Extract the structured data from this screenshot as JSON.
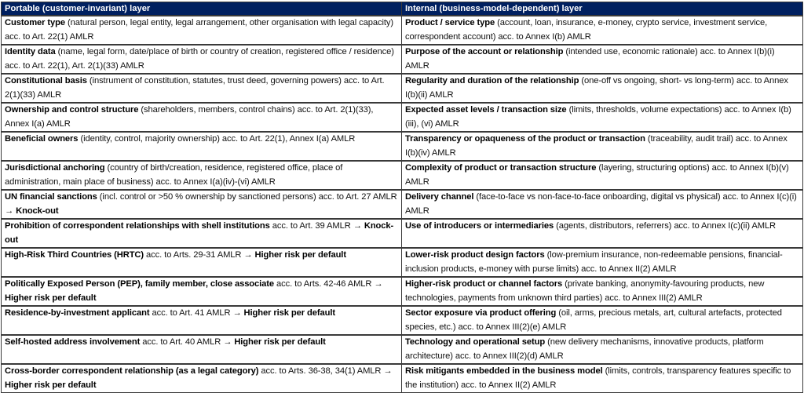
{
  "headers": [
    "Portable (customer-invariant) layer",
    "Internal (business-model-dependent) layer"
  ],
  "rows": [
    [
      [
        {
          "b": true,
          "t": "Customer type"
        },
        {
          "b": false,
          "t": " (natural person, legal entity, legal arrangement, other organisation with legal capacity) acc. to Art. 22(1) AMLR"
        }
      ],
      [
        {
          "b": true,
          "t": "Product / service type"
        },
        {
          "b": false,
          "t": " (account, loan, insurance, e-money, crypto service, investment service, correspondent account) acc. to Annex I(b) AMLR"
        }
      ]
    ],
    [
      [
        {
          "b": true,
          "t": "Identity data"
        },
        {
          "b": false,
          "t": " (name, legal form, date/place of birth or country of creation, registered office / residence) acc. to Art. 22(1), Art. 2(1)(33) AMLR"
        }
      ],
      [
        {
          "b": true,
          "t": "Purpose of the account or relationship"
        },
        {
          "b": false,
          "t": " (intended use, economic rationale) acc. to Annex I(b)(i) AMLR"
        }
      ]
    ],
    [
      [
        {
          "b": true,
          "t": "Constitutional basis"
        },
        {
          "b": false,
          "t": " (instrument of constitution, statutes, trust deed, governing powers) acc. to Art. 2(1)(33) AMLR"
        }
      ],
      [
        {
          "b": true,
          "t": "Regularity and duration of the relationship"
        },
        {
          "b": false,
          "t": " (one-off vs ongoing, short- vs long-term) acc. to Annex I(b)(ii) AMLR"
        }
      ]
    ],
    [
      [
        {
          "b": true,
          "t": "Ownership and control structure"
        },
        {
          "b": false,
          "t": " (shareholders, members, control chains) acc. to Art. 2(1)(33), Annex I(a) AMLR"
        }
      ],
      [
        {
          "b": true,
          "t": "Expected asset levels / transaction size"
        },
        {
          "b": false,
          "t": " (limits, thresholds, volume expectations) acc. to Annex I(b)(iii), (vi) AMLR"
        }
      ]
    ],
    [
      [
        {
          "b": true,
          "t": "Beneficial owners"
        },
        {
          "b": false,
          "t": " (identity, control, majority ownership) acc. to Art. 22(1), Annex I(a) AMLR"
        }
      ],
      [
        {
          "b": true,
          "t": "Transparency or opaqueness of the product or transaction"
        },
        {
          "b": false,
          "t": " (traceability, audit trail) acc. to Annex I(b)(iv) AMLR"
        }
      ]
    ],
    [
      [
        {
          "b": true,
          "t": "Jurisdictional anchoring"
        },
        {
          "b": false,
          "t": " (country of birth/creation, residence, registered office, place of administration, main place of business) acc. to Annex I(a)(iv)-(vi) AMLR"
        }
      ],
      [
        {
          "b": true,
          "t": "Complexity of product or transaction structure"
        },
        {
          "b": false,
          "t": " (layering, structuring options) acc. to Annex I(b)(v) AMLR"
        }
      ]
    ],
    [
      [
        {
          "b": true,
          "t": "UN financial sanctions"
        },
        {
          "b": false,
          "t": " (incl. control or >50 % ownership by sanctioned persons) acc. to Art. 27 AMLR → "
        },
        {
          "b": true,
          "t": "Knock-out"
        }
      ],
      [
        {
          "b": true,
          "t": "Delivery channel"
        },
        {
          "b": false,
          "t": " (face-to-face vs non-face-to-face onboarding, digital vs physical) acc. to Annex I(c)(i) AMLR"
        }
      ]
    ],
    [
      [
        {
          "b": true,
          "t": "Prohibition of correspondent relationships with shell institutions"
        },
        {
          "b": false,
          "t": " acc. to Art. 39 AMLR → "
        },
        {
          "b": true,
          "t": "Knock-out"
        }
      ],
      [
        {
          "b": true,
          "t": "Use of introducers or intermediaries"
        },
        {
          "b": false,
          "t": " (agents, distributors, referrers) acc. to Annex I(c)(ii) AMLR"
        }
      ]
    ],
    [
      [
        {
          "b": true,
          "t": "High-Risk Third Countries (HRTC)"
        },
        {
          "b": false,
          "t": " acc. to Arts. 29-31 AMLR → "
        },
        {
          "b": true,
          "t": "Higher risk per default"
        }
      ],
      [
        {
          "b": true,
          "t": "Lower-risk product design factors"
        },
        {
          "b": false,
          "t": " (low-premium insurance, non-redeemable pensions, financial-inclusion products, e-money with purse limits) acc. to Annex II(2) AMLR"
        }
      ]
    ],
    [
      [
        {
          "b": true,
          "t": "Politically Exposed Person (PEP), family member, close associate"
        },
        {
          "b": false,
          "t": " acc. to Arts. 42-46 AMLR → "
        },
        {
          "b": true,
          "t": "Higher risk per default"
        }
      ],
      [
        {
          "b": true,
          "t": "Higher-risk product or channel factors"
        },
        {
          "b": false,
          "t": " (private banking, anonymity-favouring products, new technologies, payments from unknown third parties) acc. to Annex III(2) AMLR"
        }
      ]
    ],
    [
      [
        {
          "b": true,
          "t": "Residence-by-investment applicant"
        },
        {
          "b": false,
          "t": " acc. to Art. 41 AMLR → "
        },
        {
          "b": true,
          "t": "Higher risk per default"
        }
      ],
      [
        {
          "b": true,
          "t": "Sector exposure via product offering"
        },
        {
          "b": false,
          "t": " (oil, arms, precious metals, art, cultural artefacts, protected species, etc.) acc. to Annex III(2)(e) AMLR"
        }
      ]
    ],
    [
      [
        {
          "b": true,
          "t": "Self-hosted address involvement"
        },
        {
          "b": false,
          "t": " acc. to Art. 40 AMLR → "
        },
        {
          "b": true,
          "t": "Higher risk per default"
        }
      ],
      [
        {
          "b": true,
          "t": "Technology and operational setup"
        },
        {
          "b": false,
          "t": " (new delivery mechanisms, innovative products, platform architecture) acc. to Annex III(2)(d) AMLR"
        }
      ]
    ],
    [
      [
        {
          "b": true,
          "t": "Cross-border correspondent relationship (as a legal category)"
        },
        {
          "b": false,
          "t": " acc. to Arts. 36-38, 34(1) AMLR → "
        },
        {
          "b": true,
          "t": "Higher risk per default"
        }
      ],
      [
        {
          "b": true,
          "t": "Risk mitigants embedded in the business model"
        },
        {
          "b": false,
          "t": " (limits, controls, transparency features specific to the institution) acc. to Annex II(2) AMLR"
        }
      ]
    ]
  ],
  "colors": {
    "header_bg": "#002060",
    "header_text": "#ffffff",
    "border": "#3a3a3a"
  }
}
